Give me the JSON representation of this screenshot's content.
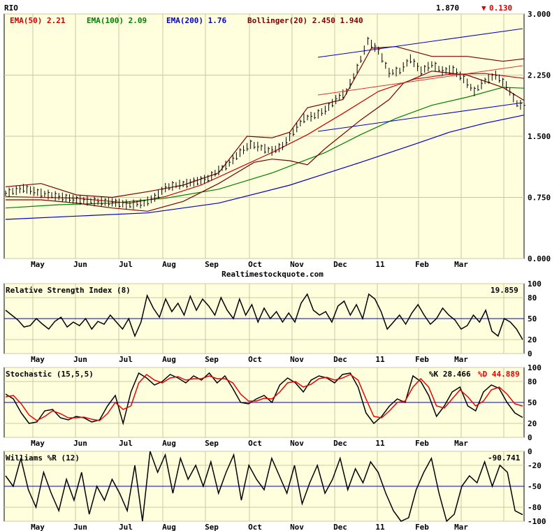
{
  "header": {
    "symbol": "RIO",
    "last_price": "1.870",
    "change_arrow": "▼",
    "change": "0.130",
    "ema50_label": "EMA(50) 2.21",
    "ema100_label": "EMA(100) 2.09",
    "ema200_label": "EMA(200) 1.76",
    "bollinger_label": "Bollinger(20) 2.450 1.940",
    "watermark": "Realtimestockquote.com"
  },
  "colors": {
    "panel_bg": "#ffffdd",
    "grid": "#c8c8a0",
    "ema50": "#cc0000",
    "ema100": "#008000",
    "ema200": "#0000cc",
    "bollinger": "#7a0000",
    "channel": "#0000cc",
    "regression": "#dd3333",
    "price_bar": "#000000",
    "stoch_d": "#ee0000",
    "midline": "#0000cc",
    "down": "#dd0000"
  },
  "months": [
    "May",
    "Jun",
    "Jul",
    "Aug",
    "Sep",
    "Oct",
    "Nov",
    "Dec",
    "11",
    "Feb",
    "Mar"
  ],
  "rsi": {
    "title": "Relative Strength Index (8)",
    "value": "19.859",
    "ticks": [
      "100",
      "80",
      "50",
      "20",
      "0"
    ]
  },
  "stochastic": {
    "title": "Stochastic (15,5,5)",
    "k_label": "%K 28.466",
    "d_label": "%D 44.889",
    "ticks": [
      "100",
      "80",
      "50",
      "20",
      "0"
    ]
  },
  "williams": {
    "title": "Williams %R (12)",
    "value": "-90.741",
    "ticks": [
      "0",
      "-20",
      "-50",
      "-80",
      "-100"
    ]
  },
  "chart_data": [
    {
      "type": "line",
      "title": "RIO",
      "ylim": [
        0.0,
        3.0
      ],
      "yticks": [
        "3.000",
        "2.250",
        "1.500",
        "0.750",
        "0.000"
      ],
      "x_categories": [
        "May",
        "Jun",
        "Jul",
        "Aug",
        "Sep",
        "Oct",
        "Nov",
        "Dec",
        "11",
        "Feb",
        "Mar"
      ],
      "series": [
        {
          "name": "Price",
          "points": [
            [
              0,
              0.8
            ],
            [
              5,
              0.86
            ],
            [
              10,
              0.8
            ],
            [
              15,
              0.76
            ],
            [
              20,
              0.72
            ],
            [
              25,
              0.7
            ],
            [
              30,
              0.69
            ],
            [
              35,
              0.66
            ],
            [
              39,
              0.68
            ],
            [
              42,
              0.75
            ],
            [
              45,
              0.87
            ],
            [
              48,
              0.9
            ],
            [
              51,
              0.92
            ],
            [
              54,
              0.95
            ],
            [
              57,
              0.98
            ],
            [
              60,
              1.08
            ],
            [
              63,
              1.17
            ],
            [
              66,
              1.3
            ],
            [
              69,
              1.4
            ],
            [
              72,
              1.36
            ],
            [
              75,
              1.32
            ],
            [
              78,
              1.38
            ],
            [
              81,
              1.55
            ],
            [
              84,
              1.72
            ],
            [
              87,
              1.75
            ],
            [
              90,
              1.82
            ],
            [
              93,
              1.95
            ],
            [
              96,
              2.05
            ],
            [
              99,
              2.33
            ],
            [
              102,
              2.67
            ],
            [
              105,
              2.55
            ],
            [
              108,
              2.28
            ],
            [
              111,
              2.3
            ],
            [
              114,
              2.45
            ],
            [
              117,
              2.3
            ],
            [
              120,
              2.38
            ],
            [
              123,
              2.3
            ],
            [
              126,
              2.32
            ],
            [
              129,
              2.2
            ],
            [
              132,
              2.05
            ],
            [
              135,
              2.18
            ],
            [
              138,
              2.25
            ],
            [
              141,
              2.12
            ],
            [
              144,
              1.9
            ],
            [
              146,
              1.87
            ]
          ]
        },
        {
          "name": "EMA(50)",
          "points": [
            [
              0,
              0.76
            ],
            [
              20,
              0.74
            ],
            [
              35,
              0.68
            ],
            [
              45,
              0.76
            ],
            [
              55,
              0.9
            ],
            [
              65,
              1.1
            ],
            [
              75,
              1.3
            ],
            [
              85,
              1.52
            ],
            [
              95,
              1.78
            ],
            [
              105,
              2.05
            ],
            [
              115,
              2.2
            ],
            [
              125,
              2.26
            ],
            [
              135,
              2.27
            ],
            [
              146,
              2.21
            ]
          ]
        },
        {
          "name": "EMA(100)",
          "points": [
            [
              0,
              0.62
            ],
            [
              15,
              0.66
            ],
            [
              30,
              0.68
            ],
            [
              45,
              0.74
            ],
            [
              60,
              0.85
            ],
            [
              75,
              1.05
            ],
            [
              90,
              1.3
            ],
            [
              100,
              1.52
            ],
            [
              110,
              1.72
            ],
            [
              120,
              1.88
            ],
            [
              130,
              1.98
            ],
            [
              140,
              2.1
            ],
            [
              146,
              2.09
            ]
          ]
        },
        {
          "name": "EMA(200)",
          "points": [
            [
              0,
              0.48
            ],
            [
              20,
              0.52
            ],
            [
              40,
              0.56
            ],
            [
              60,
              0.68
            ],
            [
              80,
              0.9
            ],
            [
              100,
              1.18
            ],
            [
              115,
              1.4
            ],
            [
              125,
              1.55
            ],
            [
              135,
              1.66
            ],
            [
              146,
              1.76
            ]
          ]
        },
        {
          "name": "Bollinger upper",
          "points": [
            [
              0,
              0.88
            ],
            [
              10,
              0.92
            ],
            [
              20,
              0.78
            ],
            [
              30,
              0.75
            ],
            [
              40,
              0.82
            ],
            [
              50,
              0.9
            ],
            [
              60,
              1.05
            ],
            [
              68,
              1.5
            ],
            [
              75,
              1.48
            ],
            [
              80,
              1.55
            ],
            [
              85,
              1.85
            ],
            [
              95,
              1.95
            ],
            [
              103,
              2.58
            ],
            [
              110,
              2.6
            ],
            [
              120,
              2.48
            ],
            [
              130,
              2.48
            ],
            [
              140,
              2.42
            ],
            [
              146,
              2.45
            ]
          ]
        },
        {
          "name": "Bollinger lower",
          "points": [
            [
              0,
              0.72
            ],
            [
              10,
              0.72
            ],
            [
              20,
              0.68
            ],
            [
              30,
              0.62
            ],
            [
              40,
              0.58
            ],
            [
              50,
              0.7
            ],
            [
              60,
              0.92
            ],
            [
              70,
              1.18
            ],
            [
              75,
              1.22
            ],
            [
              80,
              1.2
            ],
            [
              85,
              1.15
            ],
            [
              90,
              1.35
            ],
            [
              100,
              1.7
            ],
            [
              108,
              1.95
            ],
            [
              112,
              2.15
            ],
            [
              120,
              2.3
            ],
            [
              130,
              2.25
            ],
            [
              140,
              2.1
            ],
            [
              146,
              1.94
            ]
          ]
        }
      ]
    },
    {
      "type": "line",
      "title": "Relative Strength Index (8)",
      "ylim": [
        0,
        100
      ],
      "yticks": [
        100,
        80,
        50,
        20,
        0
      ],
      "series": [
        {
          "name": "RSI",
          "values": [
            62,
            55,
            48,
            38,
            40,
            50,
            42,
            35,
            46,
            52,
            38,
            45,
            40,
            50,
            35,
            46,
            42,
            55,
            45,
            35,
            50,
            25,
            45,
            83,
            65,
            52,
            78,
            60,
            72,
            55,
            82,
            62,
            78,
            68,
            55,
            80,
            62,
            50,
            78,
            55,
            70,
            45,
            65,
            50,
            60,
            45,
            58,
            45,
            72,
            85,
            62,
            55,
            60,
            45,
            68,
            75,
            55,
            70,
            50,
            85,
            78,
            60,
            35,
            45,
            55,
            42,
            58,
            70,
            55,
            42,
            50,
            65,
            55,
            48,
            35,
            40,
            55,
            45,
            62,
            32,
            25,
            50,
            45,
            35,
            19.859
          ]
        }
      ]
    },
    {
      "type": "line",
      "title": "Stochastic (15,5,5)",
      "ylim": [
        0,
        100
      ],
      "yticks": [
        100,
        80,
        50,
        20,
        0
      ],
      "series": [
        {
          "name": "%K",
          "values": [
            62,
            55,
            35,
            20,
            22,
            38,
            40,
            28,
            25,
            30,
            28,
            22,
            25,
            45,
            60,
            20,
            65,
            92,
            85,
            75,
            80,
            90,
            85,
            78,
            88,
            82,
            92,
            78,
            88,
            70,
            50,
            48,
            55,
            60,
            50,
            75,
            85,
            78,
            65,
            82,
            88,
            85,
            78,
            90,
            92,
            72,
            35,
            20,
            30,
            45,
            55,
            50,
            88,
            80,
            60,
            30,
            45,
            65,
            72,
            45,
            38,
            65,
            75,
            70,
            50,
            35,
            28.466
          ]
        },
        {
          "name": "%D",
          "values": [
            58,
            60,
            48,
            32,
            24,
            30,
            38,
            34,
            28,
            28,
            29,
            26,
            24,
            34,
            50,
            40,
            45,
            78,
            90,
            82,
            78,
            85,
            87,
            82,
            84,
            84,
            88,
            84,
            84,
            78,
            62,
            52,
            52,
            56,
            55,
            65,
            78,
            80,
            72,
            76,
            84,
            86,
            82,
            85,
            90,
            82,
            55,
            30,
            28,
            38,
            50,
            52,
            72,
            84,
            72,
            45,
            42,
            55,
            68,
            58,
            45,
            52,
            68,
            72,
            62,
            48,
            44.889
          ]
        }
      ]
    },
    {
      "type": "line",
      "title": "Williams %R (12)",
      "ylim": [
        -100,
        0
      ],
      "yticks": [
        0,
        -20,
        -50,
        -80,
        -100
      ],
      "series": [
        {
          "name": "Williams %R",
          "values": [
            -35,
            -50,
            -10,
            -55,
            -80,
            -30,
            -60,
            -85,
            -40,
            -70,
            -30,
            -90,
            -50,
            -70,
            -40,
            -60,
            -85,
            -20,
            -100,
            0,
            -30,
            -5,
            -60,
            -10,
            -40,
            -20,
            -50,
            -15,
            -60,
            -30,
            -5,
            -70,
            -20,
            -40,
            -55,
            -10,
            -35,
            -60,
            -20,
            -75,
            -45,
            -20,
            -60,
            -40,
            -10,
            -55,
            -25,
            -45,
            -15,
            -30,
            -60,
            -85,
            -100,
            -95,
            -55,
            -30,
            -10,
            -60,
            -100,
            -90,
            -50,
            -35,
            -45,
            -15,
            -50,
            -20,
            -30,
            -85,
            -90.741
          ]
        }
      ]
    }
  ]
}
